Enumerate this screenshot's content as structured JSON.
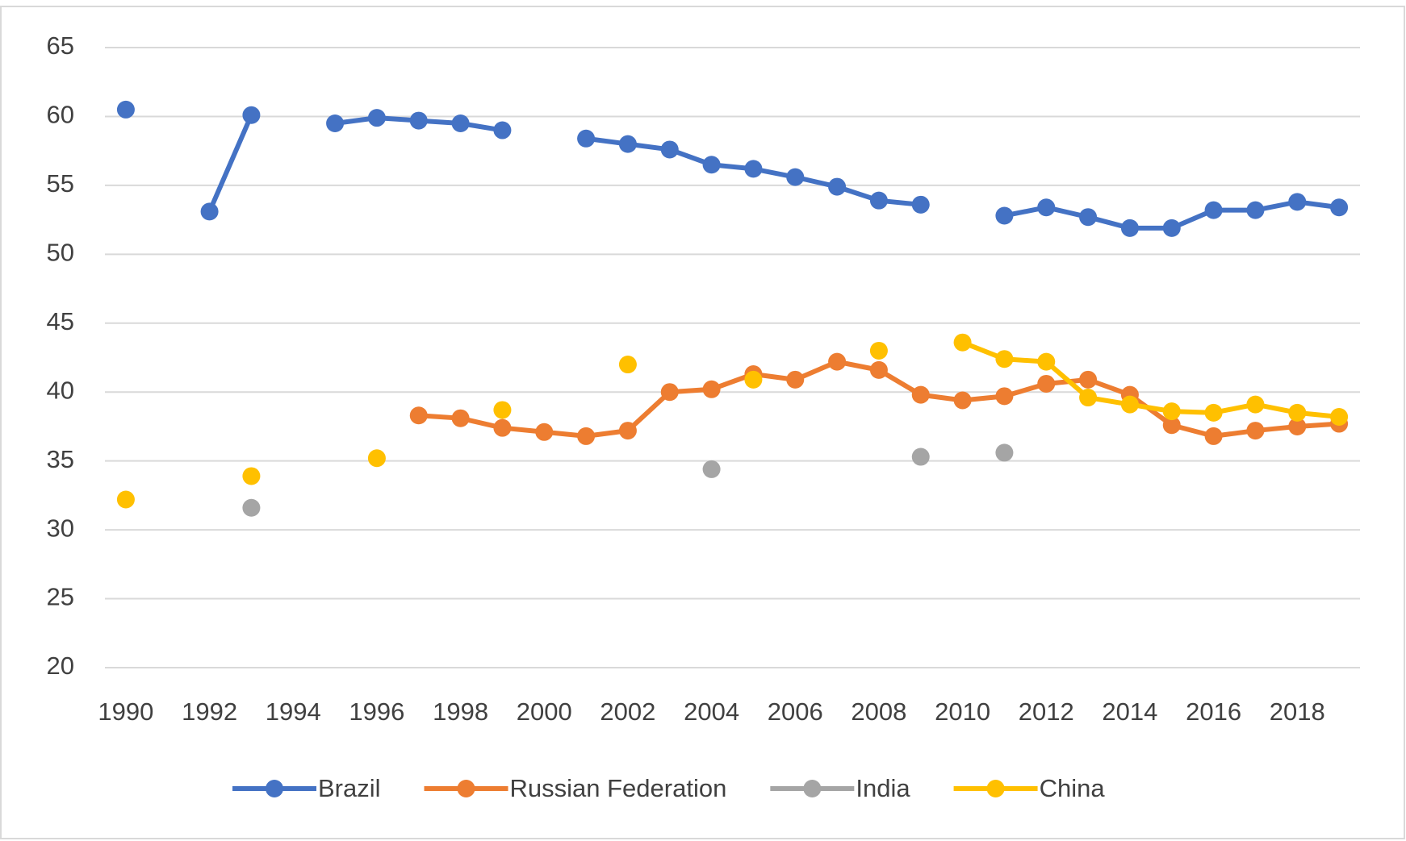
{
  "chart_data": {
    "type": "line",
    "categories": [
      "1990",
      null,
      "1992",
      null,
      "1994",
      null,
      "1996",
      null,
      "1998",
      null,
      "2000",
      null,
      "2002",
      null,
      "2004",
      null,
      "2006",
      null,
      "2008",
      null,
      "2010",
      null,
      "2012",
      null,
      "2014",
      null,
      "2016",
      null,
      "2018",
      null
    ],
    "series": [
      {
        "name": "Brazil",
        "color": "#4472c4",
        "values": [
          60.5,
          null,
          53.1,
          60.1,
          null,
          59.5,
          59.9,
          59.7,
          59.5,
          59.0,
          null,
          58.4,
          58.0,
          57.6,
          56.5,
          56.2,
          55.6,
          54.9,
          53.9,
          53.6,
          null,
          52.8,
          53.4,
          52.7,
          51.9,
          51.9,
          53.2,
          53.2,
          53.8,
          53.4
        ]
      },
      {
        "name": "Russian Federation",
        "color": "#ed7d31",
        "values": [
          null,
          null,
          null,
          null,
          null,
          null,
          null,
          38.3,
          38.1,
          37.4,
          37.1,
          36.8,
          37.2,
          40.0,
          40.2,
          41.3,
          40.9,
          42.2,
          41.6,
          39.8,
          39.4,
          39.7,
          40.6,
          40.9,
          39.8,
          37.6,
          36.8,
          37.2,
          37.5,
          37.7
        ]
      },
      {
        "name": "India",
        "color": "#a5a5a5",
        "values": [
          null,
          null,
          null,
          31.6,
          null,
          null,
          null,
          null,
          null,
          null,
          null,
          null,
          null,
          null,
          34.4,
          null,
          null,
          null,
          null,
          35.3,
          null,
          35.6,
          null,
          null,
          null,
          null,
          null,
          null,
          null,
          null
        ]
      },
      {
        "name": "China",
        "color": "#ffc000",
        "values": [
          32.2,
          null,
          null,
          33.9,
          null,
          null,
          35.2,
          null,
          null,
          38.7,
          null,
          null,
          42.0,
          null,
          null,
          40.9,
          null,
          null,
          43.0,
          null,
          43.6,
          42.4,
          42.2,
          39.6,
          39.1,
          38.6,
          38.5,
          39.1,
          38.5,
          38.2
        ]
      }
    ],
    "ylim": [
      20,
      65
    ],
    "yticks": [
      20,
      25,
      30,
      35,
      40,
      45,
      50,
      55,
      60,
      65
    ],
    "grid": true,
    "legend": "bottom"
  }
}
